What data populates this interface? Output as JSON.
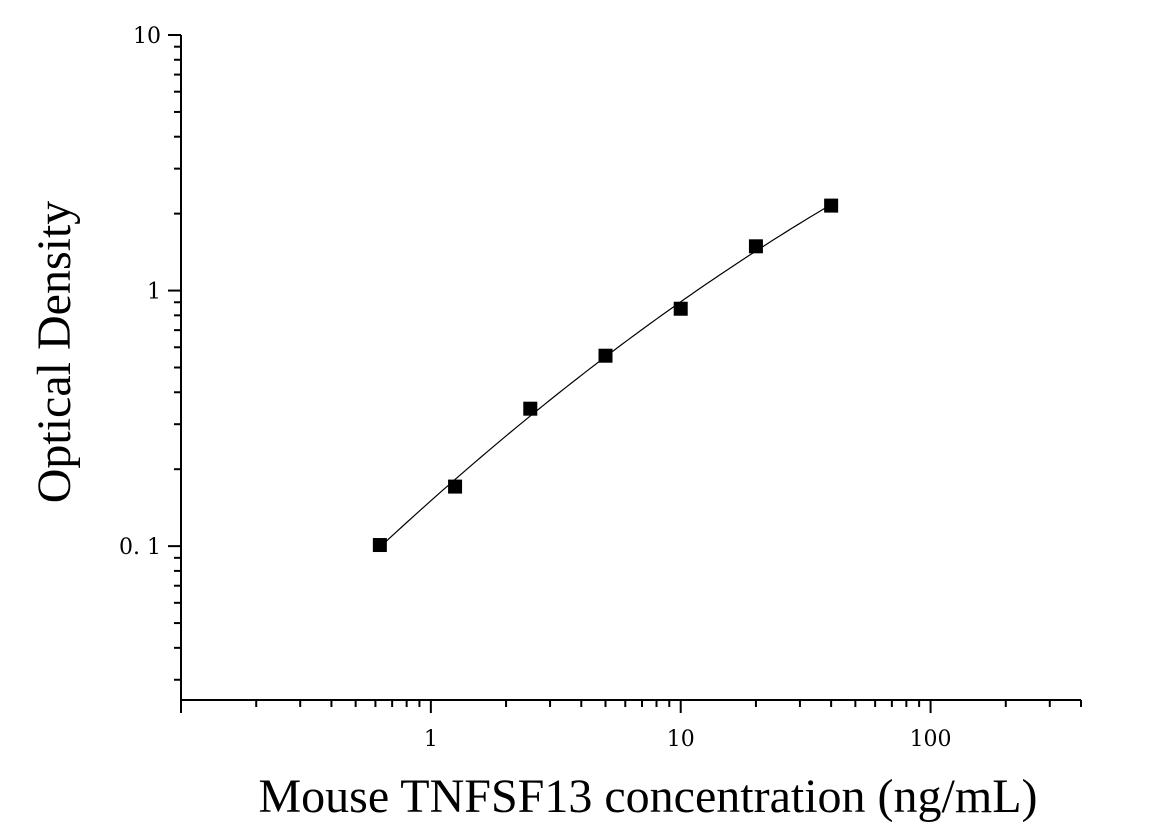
{
  "chart_data": {
    "type": "scatter",
    "title": "",
    "xlabel": "Mouse TNFSF13 concentration (ng/mL)",
    "ylabel": "Optical Density",
    "xscale": "log",
    "yscale": "log",
    "xlim": [
      0.1,
      400
    ],
    "ylim": [
      0.025,
      10
    ],
    "grid": false,
    "legend": "none",
    "x_ticks": [
      {
        "value": 1,
        "label": "1"
      },
      {
        "value": 10,
        "label": "10"
      },
      {
        "value": 100,
        "label": "100"
      }
    ],
    "y_ticks": [
      {
        "value": 0.1,
        "label": "0. 1"
      },
      {
        "value": 1,
        "label": "1"
      },
      {
        "value": 10,
        "label": "10"
      }
    ],
    "series": [
      {
        "x": [
          0.625,
          1.25,
          2.5,
          5,
          10,
          20,
          40
        ],
        "y": [
          0.101,
          0.171,
          0.345,
          0.556,
          0.849,
          1.49,
          2.15
        ],
        "marker": "square",
        "color": "#000000",
        "fit_curve": true
      }
    ]
  }
}
